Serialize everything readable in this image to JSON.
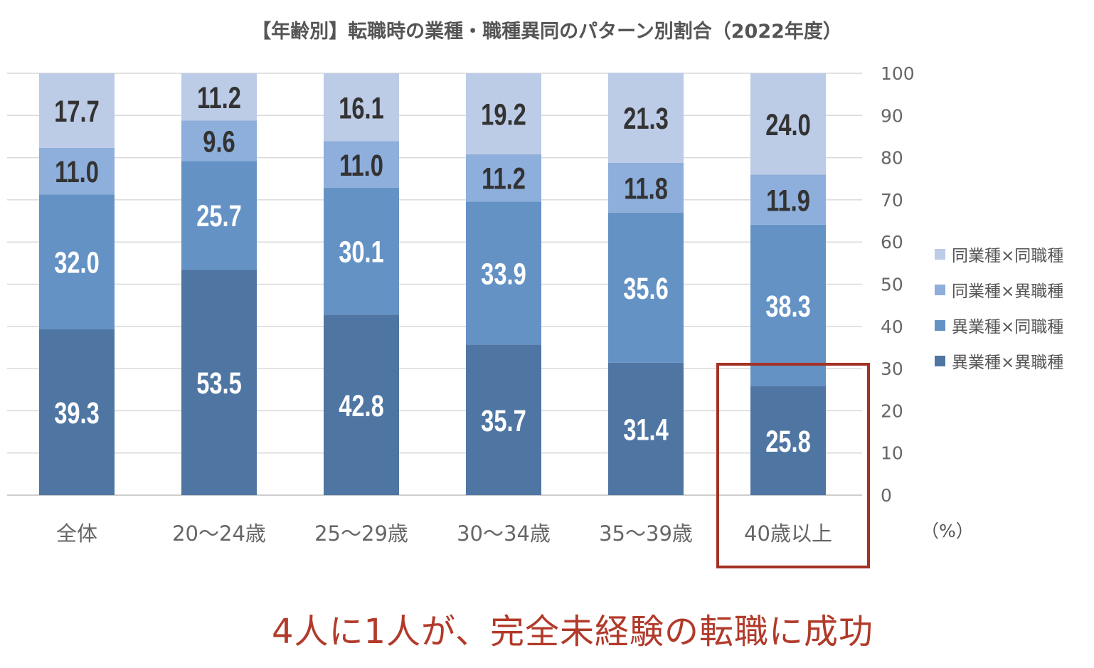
{
  "chart_data": {
    "type": "bar",
    "stacked": true,
    "title": "【年齢別】転職時の業種・職種異同のパターン別割合（2022年度）",
    "categories": [
      "全体",
      "20〜24歳",
      "25〜29歳",
      "30〜34歳",
      "35〜39歳",
      "40歳以上"
    ],
    "series": [
      {
        "name": "異業種×異職種",
        "color": "#4f76a3",
        "values": [
          39.3,
          53.5,
          42.8,
          35.7,
          31.4,
          25.8
        ]
      },
      {
        "name": "異業種×同職種",
        "color": "#6492c5",
        "values": [
          32.0,
          25.7,
          30.1,
          33.9,
          35.6,
          38.3
        ]
      },
      {
        "name": "同業種×異職種",
        "color": "#8eaedb",
        "values": [
          11.0,
          9.6,
          11.0,
          11.2,
          11.8,
          11.9
        ]
      },
      {
        "name": "同業種×同職種",
        "color": "#bccbe6",
        "values": [
          17.7,
          11.2,
          16.1,
          19.2,
          21.3,
          24.0
        ]
      }
    ],
    "ylim": [
      0,
      100
    ],
    "yticks": [
      0,
      10,
      20,
      30,
      40,
      50,
      60,
      70,
      80,
      90,
      100
    ],
    "y_axis_side": "right",
    "unit_label": "（%）",
    "grid": true,
    "legend_position": "right",
    "legend_order": [
      "同業種×同職種",
      "同業種×異職種",
      "異業種×同職種",
      "異業種×異職種"
    ],
    "label_colors": {
      "light": "#333333",
      "dark": "#ffffff"
    },
    "highlight": {
      "category": "40歳以上",
      "color": "#a33224"
    }
  },
  "caption": "4人に1人が、完全未経験の転職に成功"
}
